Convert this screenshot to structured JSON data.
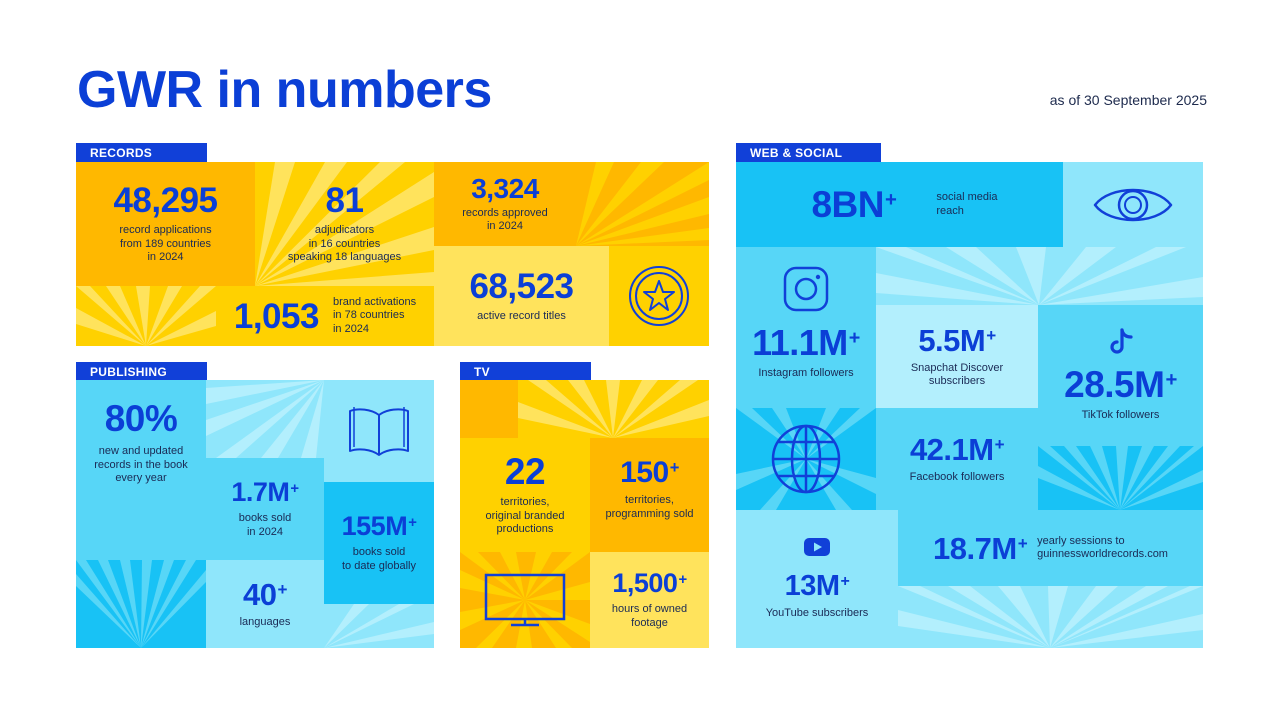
{
  "title": "GWR in numbers",
  "date": "as of 30 September 2025",
  "records": {
    "label": "RECORDS",
    "applications": {
      "value": "48,295",
      "text": "record applications\nfrom 189 countries\nin 2024"
    },
    "adjudicators": {
      "value": "81",
      "text": "adjudicators\nin 16 countries\nspeaking 18 languages"
    },
    "approved": {
      "value": "3,324",
      "text": "records approved\nin 2024"
    },
    "brand": {
      "value": "1,053",
      "text": "brand activations\nin 78 countries\nin 2024"
    },
    "active": {
      "value": "68,523",
      "text": "active record titles"
    }
  },
  "publishing": {
    "label": "PUBLISHING",
    "new_updated": {
      "value": "80%",
      "text": "new and updated\nrecords in the book\nevery year"
    },
    "books_sold": {
      "value": "1.7M",
      "plus": "+",
      "text": "books sold\nin 2024"
    },
    "books_total": {
      "value": "155M",
      "plus": "+",
      "text": "books sold\nto date globally"
    },
    "languages": {
      "value": "40",
      "plus": "+",
      "text": "languages"
    }
  },
  "tv": {
    "label": "TV",
    "territories_branded": {
      "value": "22",
      "text": "territories,\noriginal branded\nproductions"
    },
    "territories_programming": {
      "value": "150",
      "plus": "+",
      "text": "territories,\nprogramming sold"
    },
    "footage": {
      "value": "1,500",
      "plus": "+",
      "text": "hours of owned\nfootage"
    }
  },
  "web_social": {
    "label": "WEB & SOCIAL",
    "reach": {
      "value": "8BN",
      "plus": "+",
      "text": "social media\nreach"
    },
    "instagram": {
      "value": "11.1M",
      "plus": "+",
      "text": "Instagram followers"
    },
    "snapchat": {
      "value": "5.5M",
      "plus": "+",
      "text": "Snapchat Discover\nsubscribers"
    },
    "tiktok": {
      "value": "28.5M",
      "plus": "+",
      "text": "TikTok followers"
    },
    "facebook": {
      "value": "42.1M",
      "plus": "+",
      "text": "Facebook followers"
    },
    "youtube": {
      "value": "13M",
      "plus": "+",
      "text": "YouTube subscribers"
    },
    "sessions": {
      "value": "18.7M",
      "plus": "+",
      "text": "yearly sessions to\nguinnessworldrecords.com"
    }
  },
  "icons": [
    "star-badge-icon",
    "book-icon",
    "tv-icon",
    "eye-icon",
    "instagram-icon",
    "tiktok-icon",
    "globe-icon",
    "youtube-icon"
  ],
  "colors": {
    "brand_blue": "#0b3fd6",
    "yellow": "#ffd100",
    "orange": "#ffb800",
    "light_yellow": "#ffe35c",
    "cyan": "#18c2f5",
    "light_cyan": "#8fe6fb"
  }
}
